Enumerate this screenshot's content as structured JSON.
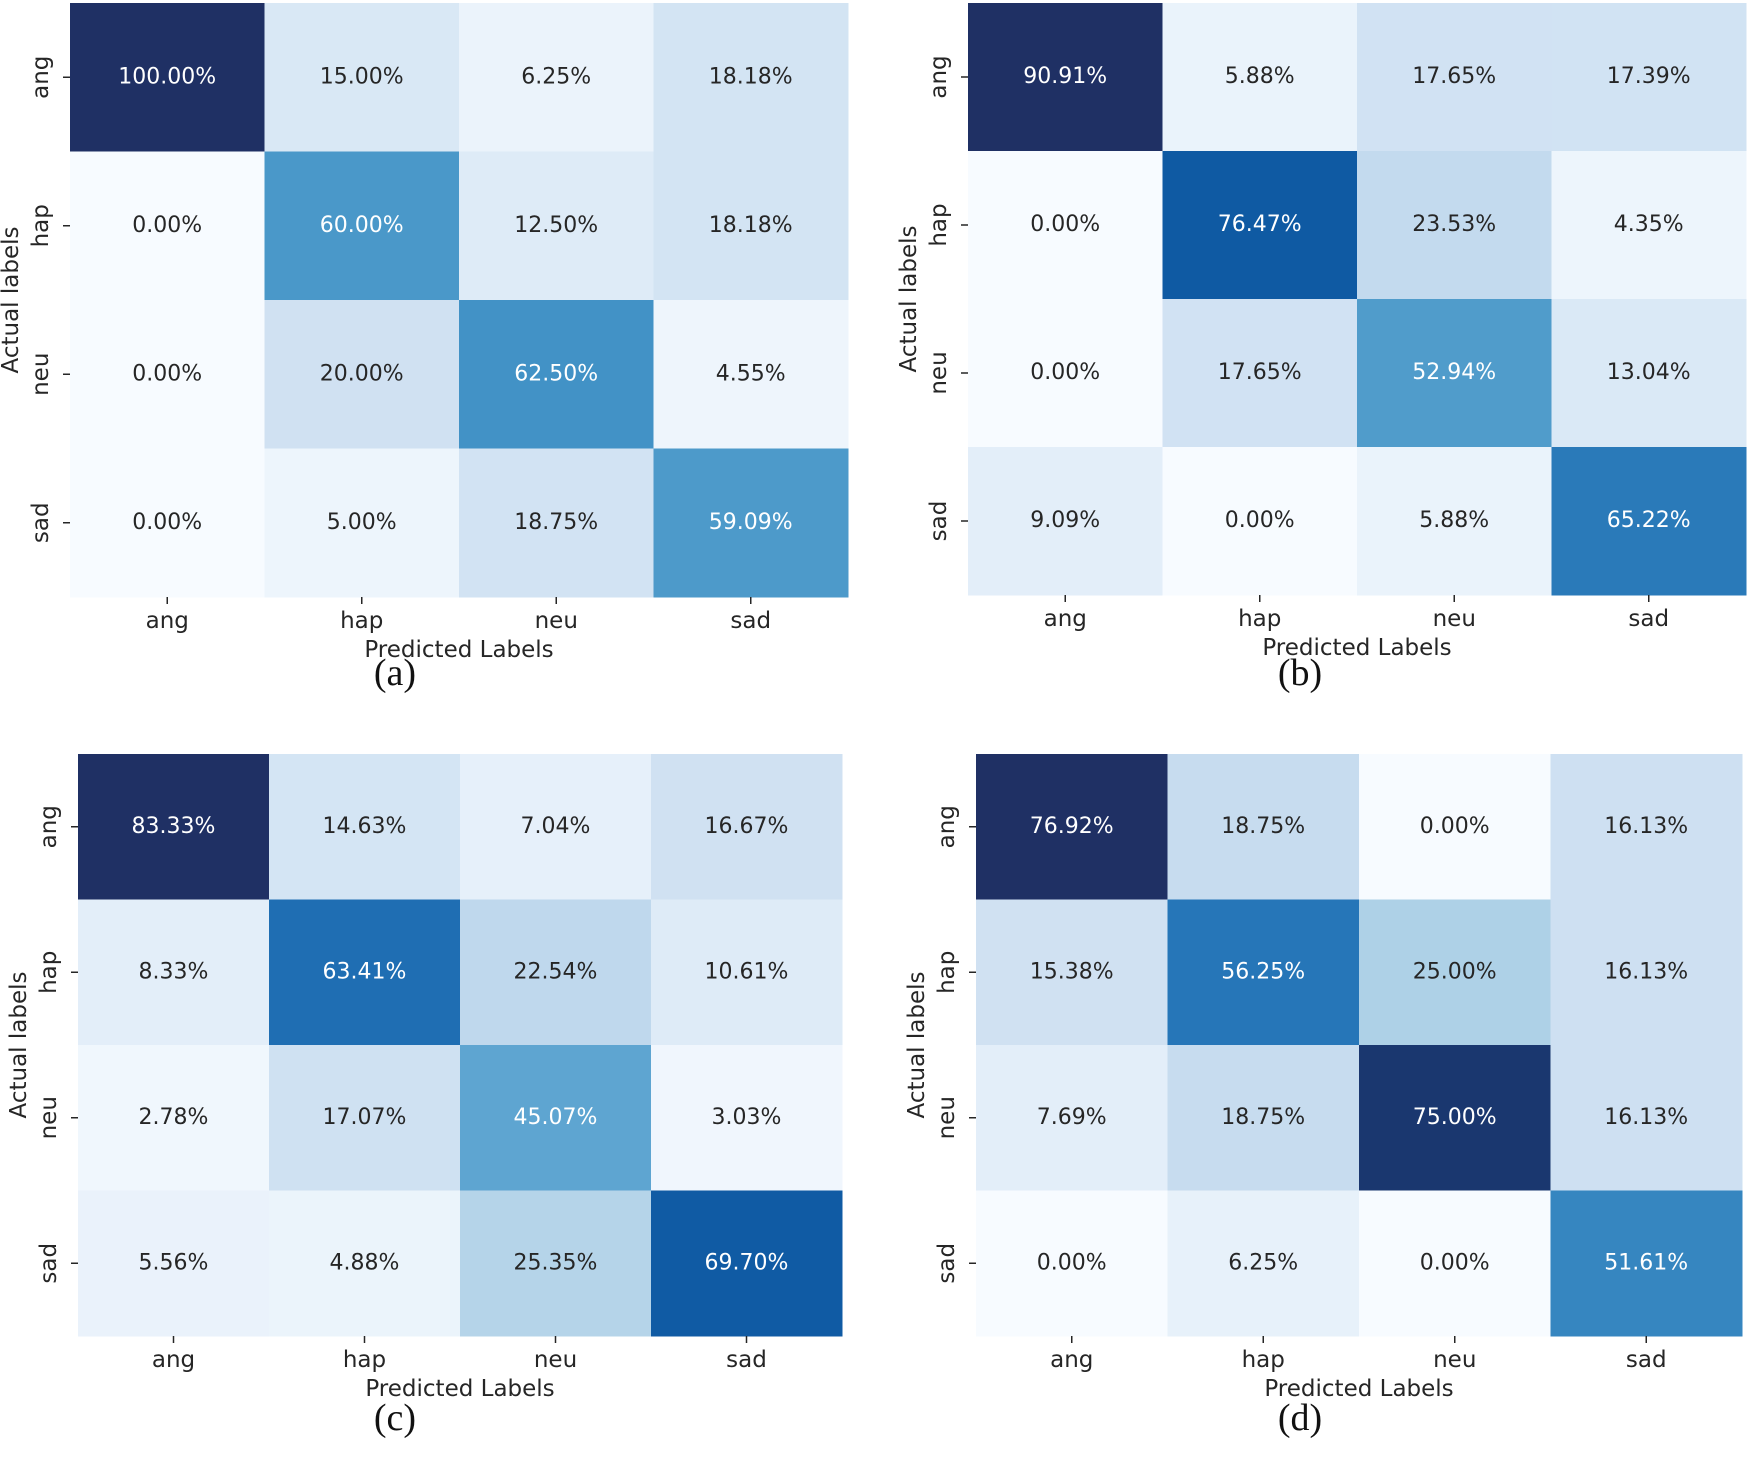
{
  "chart_data": [
    {
      "id": "a",
      "type": "heatmap",
      "caption": "(a)",
      "xlabel": "Predicted Labels",
      "ylabel": "Actual labels",
      "x_categories": [
        "ang",
        "hap",
        "neu",
        "sad"
      ],
      "y_categories": [
        "ang",
        "hap",
        "neu",
        "sad"
      ],
      "colormap": "Blues",
      "value_range": [
        0,
        100
      ],
      "values": [
        [
          100.0,
          15.0,
          6.25,
          18.18
        ],
        [
          0.0,
          60.0,
          12.5,
          18.18
        ],
        [
          0.0,
          20.0,
          62.5,
          4.55
        ],
        [
          0.0,
          5.0,
          18.75,
          59.09
        ]
      ],
      "labels": [
        [
          "100.00%",
          "15.00%",
          "6.25%",
          "18.18%"
        ],
        [
          "0.00%",
          "60.00%",
          "12.50%",
          "18.18%"
        ],
        [
          "0.00%",
          "20.00%",
          "62.50%",
          "4.55%"
        ],
        [
          "0.00%",
          "5.00%",
          "18.75%",
          "59.09%"
        ]
      ]
    },
    {
      "id": "b",
      "type": "heatmap",
      "caption": "(b)",
      "xlabel": "Predicted Labels",
      "ylabel": "Actual labels",
      "x_categories": [
        "ang",
        "hap",
        "neu",
        "sad"
      ],
      "y_categories": [
        "ang",
        "hap",
        "neu",
        "sad"
      ],
      "colormap": "Blues",
      "value_range": [
        0,
        90.91
      ],
      "values": [
        [
          90.91,
          5.88,
          17.65,
          17.39
        ],
        [
          0.0,
          76.47,
          23.53,
          4.35
        ],
        [
          0.0,
          17.65,
          52.94,
          13.04
        ],
        [
          9.09,
          0.0,
          5.88,
          65.22
        ]
      ],
      "labels": [
        [
          "90.91%",
          "5.88%",
          "17.65%",
          "17.39%"
        ],
        [
          "0.00%",
          "76.47%",
          "23.53%",
          "4.35%"
        ],
        [
          "0.00%",
          "17.65%",
          "52.94%",
          "13.04%"
        ],
        [
          "9.09%",
          "0.00%",
          "5.88%",
          "65.22%"
        ]
      ]
    },
    {
      "id": "c",
      "type": "heatmap",
      "caption": "(c)",
      "xlabel": "Predicted Labels",
      "ylabel": "Actual labels",
      "x_categories": [
        "ang",
        "hap",
        "neu",
        "sad"
      ],
      "y_categories": [
        "ang",
        "hap",
        "neu",
        "sad"
      ],
      "colormap": "Blues",
      "value_range": [
        0,
        83.33
      ],
      "values": [
        [
          83.33,
          14.63,
          7.04,
          16.67
        ],
        [
          8.33,
          63.41,
          22.54,
          10.61
        ],
        [
          2.78,
          17.07,
          45.07,
          3.03
        ],
        [
          5.56,
          4.88,
          25.35,
          69.7
        ]
      ],
      "labels": [
        [
          "83.33%",
          "14.63%",
          "7.04%",
          "16.67%"
        ],
        [
          "8.33%",
          "63.41%",
          "22.54%",
          "10.61%"
        ],
        [
          "2.78%",
          "17.07%",
          "45.07%",
          "3.03%"
        ],
        [
          "5.56%",
          "4.88%",
          "25.35%",
          "69.70%"
        ]
      ]
    },
    {
      "id": "d",
      "type": "heatmap",
      "caption": "(d)",
      "xlabel": "Predicted Labels",
      "ylabel": "Actual labels",
      "x_categories": [
        "ang",
        "hap",
        "neu",
        "sad"
      ],
      "y_categories": [
        "ang",
        "hap",
        "neu",
        "sad"
      ],
      "colormap": "Blues",
      "value_range": [
        0,
        76.92
      ],
      "values": [
        [
          76.92,
          18.75,
          0.0,
          16.13
        ],
        [
          15.38,
          56.25,
          25.0,
          16.13
        ],
        [
          7.69,
          18.75,
          75.0,
          16.13
        ],
        [
          0.0,
          6.25,
          0.0,
          51.61
        ]
      ],
      "labels": [
        [
          "76.92%",
          "18.75%",
          "0.00%",
          "16.13%"
        ],
        [
          "15.38%",
          "56.25%",
          "25.00%",
          "16.13%"
        ],
        [
          "7.69%",
          "18.75%",
          "75.00%",
          "16.13%"
        ],
        [
          "0.00%",
          "6.25%",
          "0.00%",
          "51.61%"
        ]
      ]
    }
  ]
}
